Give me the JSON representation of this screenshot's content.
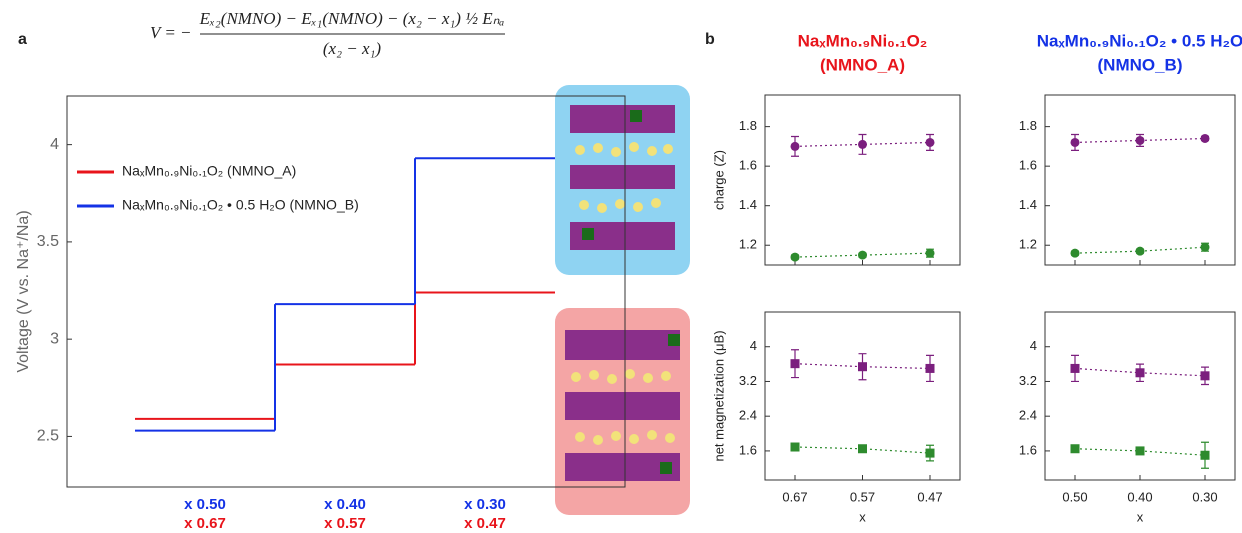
{
  "chart_data": [
    {
      "type": "step",
      "panel_label": "a",
      "formula": {
        "lhs": "V = −",
        "numerator": "Eₓ₂(NMNO) − Eₓ₁(NMNO) − (x₂ − x₁) ½ Eₙₐ",
        "denominator": "(x₂ − x₁)"
      },
      "y_label": "Voltage (V vs. Na⁺/Na)",
      "ylim": [
        2.24,
        4.25
      ],
      "yticks": [
        2.5,
        3,
        3.5,
        4
      ],
      "series": [
        {
          "name": "NaₓMn₀.₉Ni₀.₁O₂ (NMNO_A)",
          "color": "#e8141b",
          "values": [
            2.59,
            2.87,
            3.24
          ],
          "x_labels": [
            "x 0.67",
            "x 0.57",
            "x 0.47"
          ]
        },
        {
          "name": "NaₓMn₀.₉Ni₀.₁O₂ • 0.5 H₂O (NMNO_B)",
          "color": "#1432e6",
          "values": [
            2.53,
            3.18,
            3.93
          ],
          "x_labels": [
            "x 0.50",
            "x 0.40",
            "x 0.30"
          ]
        }
      ]
    },
    {
      "type": "scatter",
      "panel_label": "b",
      "title": "NaₓMn₀.₉Ni₀.₁O₂",
      "subtitle": "(NMNO_A)",
      "title_color": "#e8141b",
      "y_label": "charge (Z)",
      "categories": [
        null,
        null,
        null
      ],
      "ylim": [
        1.1,
        1.96
      ],
      "yticks": [
        1.2,
        1.4,
        1.6,
        1.8
      ],
      "marker": "circle",
      "series": [
        {
          "color": "#7b1f7e",
          "values": [
            1.7,
            1.71,
            1.72
          ],
          "errors": [
            0.05,
            0.05,
            0.04
          ]
        },
        {
          "color": "#2e8b2e",
          "values": [
            1.14,
            1.15,
            1.16
          ],
          "errors": [
            0.01,
            0.01,
            0.02
          ]
        }
      ]
    },
    {
      "type": "scatter",
      "title": "NaₓMn₀.₉Ni₀.₁O₂ • 0.5 H₂O",
      "subtitle": "(NMNO_B)",
      "title_color": "#1432e6",
      "categories": [
        null,
        null,
        null
      ],
      "ylim": [
        1.1,
        1.96
      ],
      "yticks": [
        1.2,
        1.4,
        1.6,
        1.8
      ],
      "marker": "circle",
      "series": [
        {
          "color": "#7b1f7e",
          "values": [
            1.72,
            1.73,
            1.74
          ],
          "errors": [
            0.04,
            0.03,
            0.01
          ]
        },
        {
          "color": "#2e8b2e",
          "values": [
            1.16,
            1.17,
            1.19
          ],
          "errors": [
            0.01,
            0.01,
            0.02
          ]
        }
      ]
    },
    {
      "type": "scatter",
      "y_label": "net magnetization (μB)",
      "x_label": "x",
      "categories": [
        "0.67",
        "0.57",
        "0.47"
      ],
      "ylim": [
        0.93,
        4.8
      ],
      "yticks": [
        1.6,
        2.4,
        3.2,
        4
      ],
      "marker": "square",
      "series": [
        {
          "color": "#7b1f7e",
          "values": [
            3.61,
            3.54,
            3.5
          ],
          "errors": [
            0.32,
            0.3,
            0.3
          ]
        },
        {
          "color": "#2e8b2e",
          "values": [
            1.69,
            1.65,
            1.55
          ],
          "errors": [
            0.04,
            0.04,
            0.18
          ]
        }
      ]
    },
    {
      "type": "scatter",
      "x_label": "x",
      "categories": [
        "0.50",
        "0.40",
        "0.30"
      ],
      "ylim": [
        0.93,
        4.8
      ],
      "yticks": [
        1.6,
        2.4,
        3.2,
        4
      ],
      "marker": "square",
      "series": [
        {
          "color": "#7b1f7e",
          "values": [
            3.5,
            3.4,
            3.33
          ],
          "errors": [
            0.3,
            0.2,
            0.2
          ]
        },
        {
          "color": "#2e8b2e",
          "values": [
            1.65,
            1.6,
            1.5
          ],
          "errors": [
            0.05,
            0.05,
            0.3
          ]
        }
      ]
    }
  ]
}
